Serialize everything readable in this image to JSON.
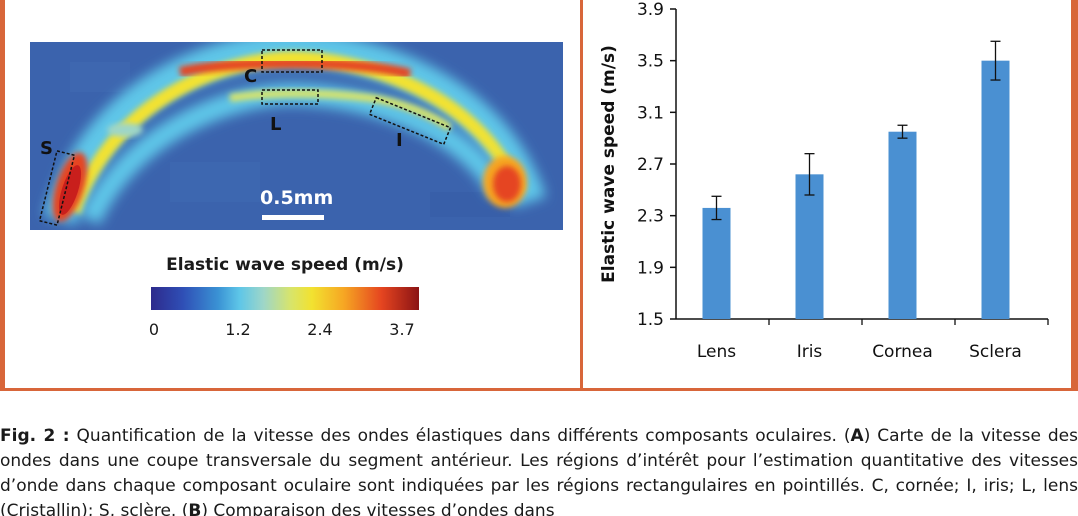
{
  "panel_a": {
    "roi_labels": [
      "C",
      "L",
      "I",
      "S"
    ],
    "scale_bar_label": "0.5mm",
    "colorbar_title": "Elastic wave speed (m/s)",
    "colorbar_ticks": [
      "0",
      "1.2",
      "2.4",
      "3.7"
    ],
    "colors": {
      "background_map": "#3b63ad",
      "low": "#2d2a8c",
      "mid": "#f2e230",
      "high": "#8b1314"
    }
  },
  "chart_data": {
    "type": "bar",
    "categories": [
      "Lens",
      "Iris",
      "Cornea",
      "Sclera"
    ],
    "values": [
      2.36,
      2.62,
      2.95,
      3.5
    ],
    "errors": [
      0.09,
      0.16,
      0.05,
      0.15
    ],
    "ylabel": "Elastic wave speed (m/s)",
    "xlabel": "",
    "ylim": [
      1.5,
      3.9
    ],
    "yticks": [
      "1.5",
      "1.9",
      "2.3",
      "2.7",
      "3.1",
      "3.5",
      "3.9"
    ],
    "bar_color": "#4a90d2",
    "grid": false
  },
  "caption": {
    "label": "Fig. 2 :",
    "text_1": " Quantification de la vitesse des ondes élastiques dans différents composants oculaires. (",
    "ref_a": "A",
    "text_2": ") Carte de la vitesse des ondes dans une coupe transversale du segment antérieur. Les régions d’intérêt pour l’estimation quantitative des vitesses d’onde dans chaque composant oculaire sont indiquées par les régions rectangulaires en pointillés. C, cornée; I, iris; L, lens (Cristallin); S, sclère. (",
    "ref_b": "B",
    "text_3": ") Comparaison des vitesses d’ondes dans"
  }
}
